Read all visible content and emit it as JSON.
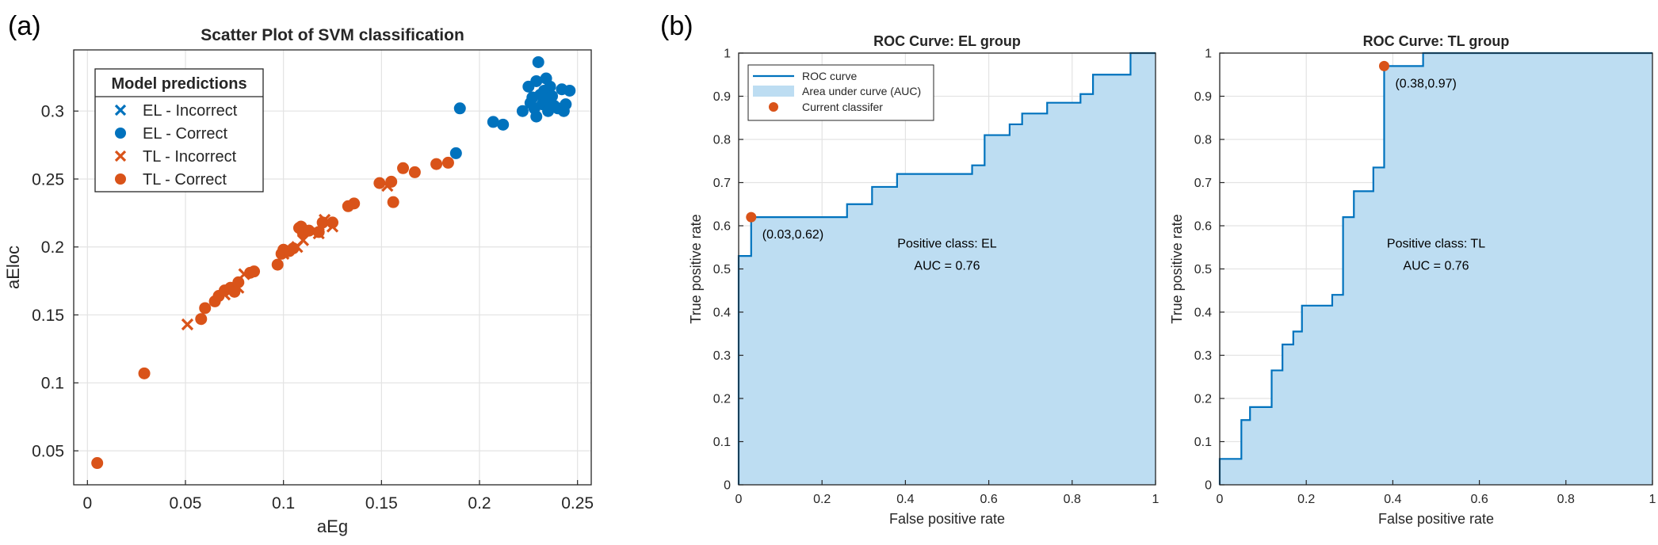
{
  "panel_labels": [
    "(a)",
    "(b)"
  ],
  "colors": {
    "el": "#0072BD",
    "tl": "#D95319",
    "roc_line": "#0072BD",
    "auc_fill": "#BDDDF2",
    "grid": "#e3e3e3"
  },
  "chart_data": [
    {
      "type": "scatter",
      "title": "Scatter Plot of SVM classification",
      "xlabel": "aEg",
      "ylabel": "aEloc",
      "xlim": [
        -0.007,
        0.257
      ],
      "ylim": [
        0.025,
        0.345
      ],
      "xticks": [
        0,
        0.05,
        0.1,
        0.15,
        0.2,
        0.25
      ],
      "yticks": [
        0.05,
        0.1,
        0.15,
        0.2,
        0.25,
        0.3
      ],
      "grid": true,
      "legend": {
        "title": "Model predictions",
        "position": "top-left",
        "entries": [
          "EL - Incorrect",
          "EL - Correct",
          "TL - Incorrect",
          "TL - Correct"
        ]
      },
      "series": [
        {
          "name": "EL - Incorrect",
          "marker": "x",
          "color": "#0072BD",
          "points": []
        },
        {
          "name": "EL - Correct",
          "marker": "o",
          "color": "#0072BD",
          "points": [
            [
              0.188,
              0.269
            ],
            [
              0.19,
              0.302
            ],
            [
              0.207,
              0.292
            ],
            [
              0.212,
              0.29
            ],
            [
              0.222,
              0.3
            ],
            [
              0.225,
              0.318
            ],
            [
              0.226,
              0.306
            ],
            [
              0.227,
              0.31
            ],
            [
              0.228,
              0.302
            ],
            [
              0.229,
              0.296
            ],
            [
              0.229,
              0.322
            ],
            [
              0.23,
              0.336
            ],
            [
              0.231,
              0.312
            ],
            [
              0.232,
              0.305
            ],
            [
              0.233,
              0.315
            ],
            [
              0.234,
              0.308
            ],
            [
              0.234,
              0.324
            ],
            [
              0.235,
              0.3
            ],
            [
              0.236,
              0.318
            ],
            [
              0.237,
              0.311
            ],
            [
              0.238,
              0.304
            ],
            [
              0.24,
              0.302
            ],
            [
              0.242,
              0.316
            ],
            [
              0.243,
              0.3
            ],
            [
              0.244,
              0.305
            ],
            [
              0.246,
              0.315
            ]
          ]
        },
        {
          "name": "TL - Incorrect",
          "marker": "x",
          "color": "#D95319",
          "points": [
            [
              0.051,
              0.143
            ],
            [
              0.07,
              0.165
            ],
            [
              0.077,
              0.17
            ],
            [
              0.08,
              0.18
            ],
            [
              0.1,
              0.195
            ],
            [
              0.107,
              0.2
            ],
            [
              0.11,
              0.205
            ],
            [
              0.118,
              0.21
            ],
            [
              0.121,
              0.22
            ],
            [
              0.125,
              0.215
            ],
            [
              0.153,
              0.245
            ]
          ]
        },
        {
          "name": "TL - Correct",
          "marker": "o",
          "color": "#D95319",
          "points": [
            [
              0.005,
              0.041
            ],
            [
              0.029,
              0.107
            ],
            [
              0.058,
              0.147
            ],
            [
              0.06,
              0.155
            ],
            [
              0.065,
              0.16
            ],
            [
              0.067,
              0.164
            ],
            [
              0.07,
              0.168
            ],
            [
              0.073,
              0.17
            ],
            [
              0.075,
              0.167
            ],
            [
              0.077,
              0.174
            ],
            [
              0.083,
              0.181
            ],
            [
              0.085,
              0.182
            ],
            [
              0.097,
              0.187
            ],
            [
              0.099,
              0.195
            ],
            [
              0.1,
              0.198
            ],
            [
              0.103,
              0.197
            ],
            [
              0.105,
              0.199
            ],
            [
              0.108,
              0.214
            ],
            [
              0.109,
              0.215
            ],
            [
              0.11,
              0.21
            ],
            [
              0.113,
              0.212
            ],
            [
              0.118,
              0.211
            ],
            [
              0.12,
              0.218
            ],
            [
              0.125,
              0.218
            ],
            [
              0.133,
              0.23
            ],
            [
              0.136,
              0.232
            ],
            [
              0.149,
              0.247
            ],
            [
              0.155,
              0.248
            ],
            [
              0.156,
              0.233
            ],
            [
              0.161,
              0.258
            ],
            [
              0.167,
              0.255
            ],
            [
              0.178,
              0.261
            ],
            [
              0.184,
              0.262
            ]
          ]
        }
      ]
    },
    {
      "type": "line",
      "title": "ROC Curve: EL group",
      "xlabel": "False positive rate",
      "ylabel": "True positive rate",
      "xlim": [
        0,
        1
      ],
      "ylim": [
        0,
        1
      ],
      "xticks": [
        0,
        0.2,
        0.4,
        0.6,
        0.8,
        1
      ],
      "yticks": [
        0,
        0.1,
        0.2,
        0.3,
        0.4,
        0.5,
        0.6,
        0.7,
        0.8,
        0.9,
        1
      ],
      "grid": true,
      "legend": {
        "position": "top-left",
        "entries": [
          "ROC curve",
          "Area under curve (AUC)",
          "Current classifer"
        ]
      },
      "roc": [
        [
          0,
          0
        ],
        [
          0,
          0.53
        ],
        [
          0.03,
          0.53
        ],
        [
          0.03,
          0.62
        ],
        [
          0.26,
          0.62
        ],
        [
          0.26,
          0.65
        ],
        [
          0.32,
          0.65
        ],
        [
          0.32,
          0.69
        ],
        [
          0.38,
          0.69
        ],
        [
          0.38,
          0.72
        ],
        [
          0.56,
          0.72
        ],
        [
          0.56,
          0.74
        ],
        [
          0.59,
          0.74
        ],
        [
          0.59,
          0.81
        ],
        [
          0.65,
          0.81
        ],
        [
          0.65,
          0.835
        ],
        [
          0.68,
          0.835
        ],
        [
          0.68,
          0.86
        ],
        [
          0.74,
          0.86
        ],
        [
          0.74,
          0.885
        ],
        [
          0.82,
          0.885
        ],
        [
          0.82,
          0.905
        ],
        [
          0.85,
          0.905
        ],
        [
          0.85,
          0.95
        ],
        [
          0.94,
          0.95
        ],
        [
          0.94,
          1
        ],
        [
          1,
          1
        ]
      ],
      "current_classifier": {
        "x": 0.03,
        "y": 0.62,
        "label": "(0.03,0.62)"
      },
      "annotation": {
        "positive_class": "Positive class: EL",
        "auc": "AUC = 0.76",
        "x": 0.5,
        "y": 0.55
      }
    },
    {
      "type": "line",
      "title": "ROC Curve: TL group",
      "xlabel": "False positive rate",
      "ylabel": "True positive rate",
      "xlim": [
        0,
        1
      ],
      "ylim": [
        0,
        1
      ],
      "xticks": [
        0,
        0.2,
        0.4,
        0.6,
        0.8,
        1
      ],
      "yticks": [
        0,
        0.1,
        0.2,
        0.3,
        0.4,
        0.5,
        0.6,
        0.7,
        0.8,
        0.9,
        1
      ],
      "grid": true,
      "roc": [
        [
          0,
          0
        ],
        [
          0,
          0.06
        ],
        [
          0.05,
          0.06
        ],
        [
          0.05,
          0.15
        ],
        [
          0.07,
          0.15
        ],
        [
          0.07,
          0.18
        ],
        [
          0.12,
          0.18
        ],
        [
          0.12,
          0.265
        ],
        [
          0.145,
          0.265
        ],
        [
          0.145,
          0.325
        ],
        [
          0.17,
          0.325
        ],
        [
          0.17,
          0.355
        ],
        [
          0.19,
          0.355
        ],
        [
          0.19,
          0.415
        ],
        [
          0.26,
          0.415
        ],
        [
          0.26,
          0.44
        ],
        [
          0.285,
          0.44
        ],
        [
          0.285,
          0.62
        ],
        [
          0.31,
          0.62
        ],
        [
          0.31,
          0.68
        ],
        [
          0.355,
          0.68
        ],
        [
          0.355,
          0.735
        ],
        [
          0.38,
          0.735
        ],
        [
          0.38,
          0.97
        ],
        [
          0.47,
          0.97
        ],
        [
          0.47,
          1
        ],
        [
          1,
          1
        ]
      ],
      "current_classifier": {
        "x": 0.38,
        "y": 0.97,
        "label": "(0.38,0.97)"
      },
      "annotation": {
        "positive_class": "Positive class: TL",
        "auc": "AUC = 0.76",
        "x": 0.5,
        "y": 0.55
      }
    }
  ]
}
